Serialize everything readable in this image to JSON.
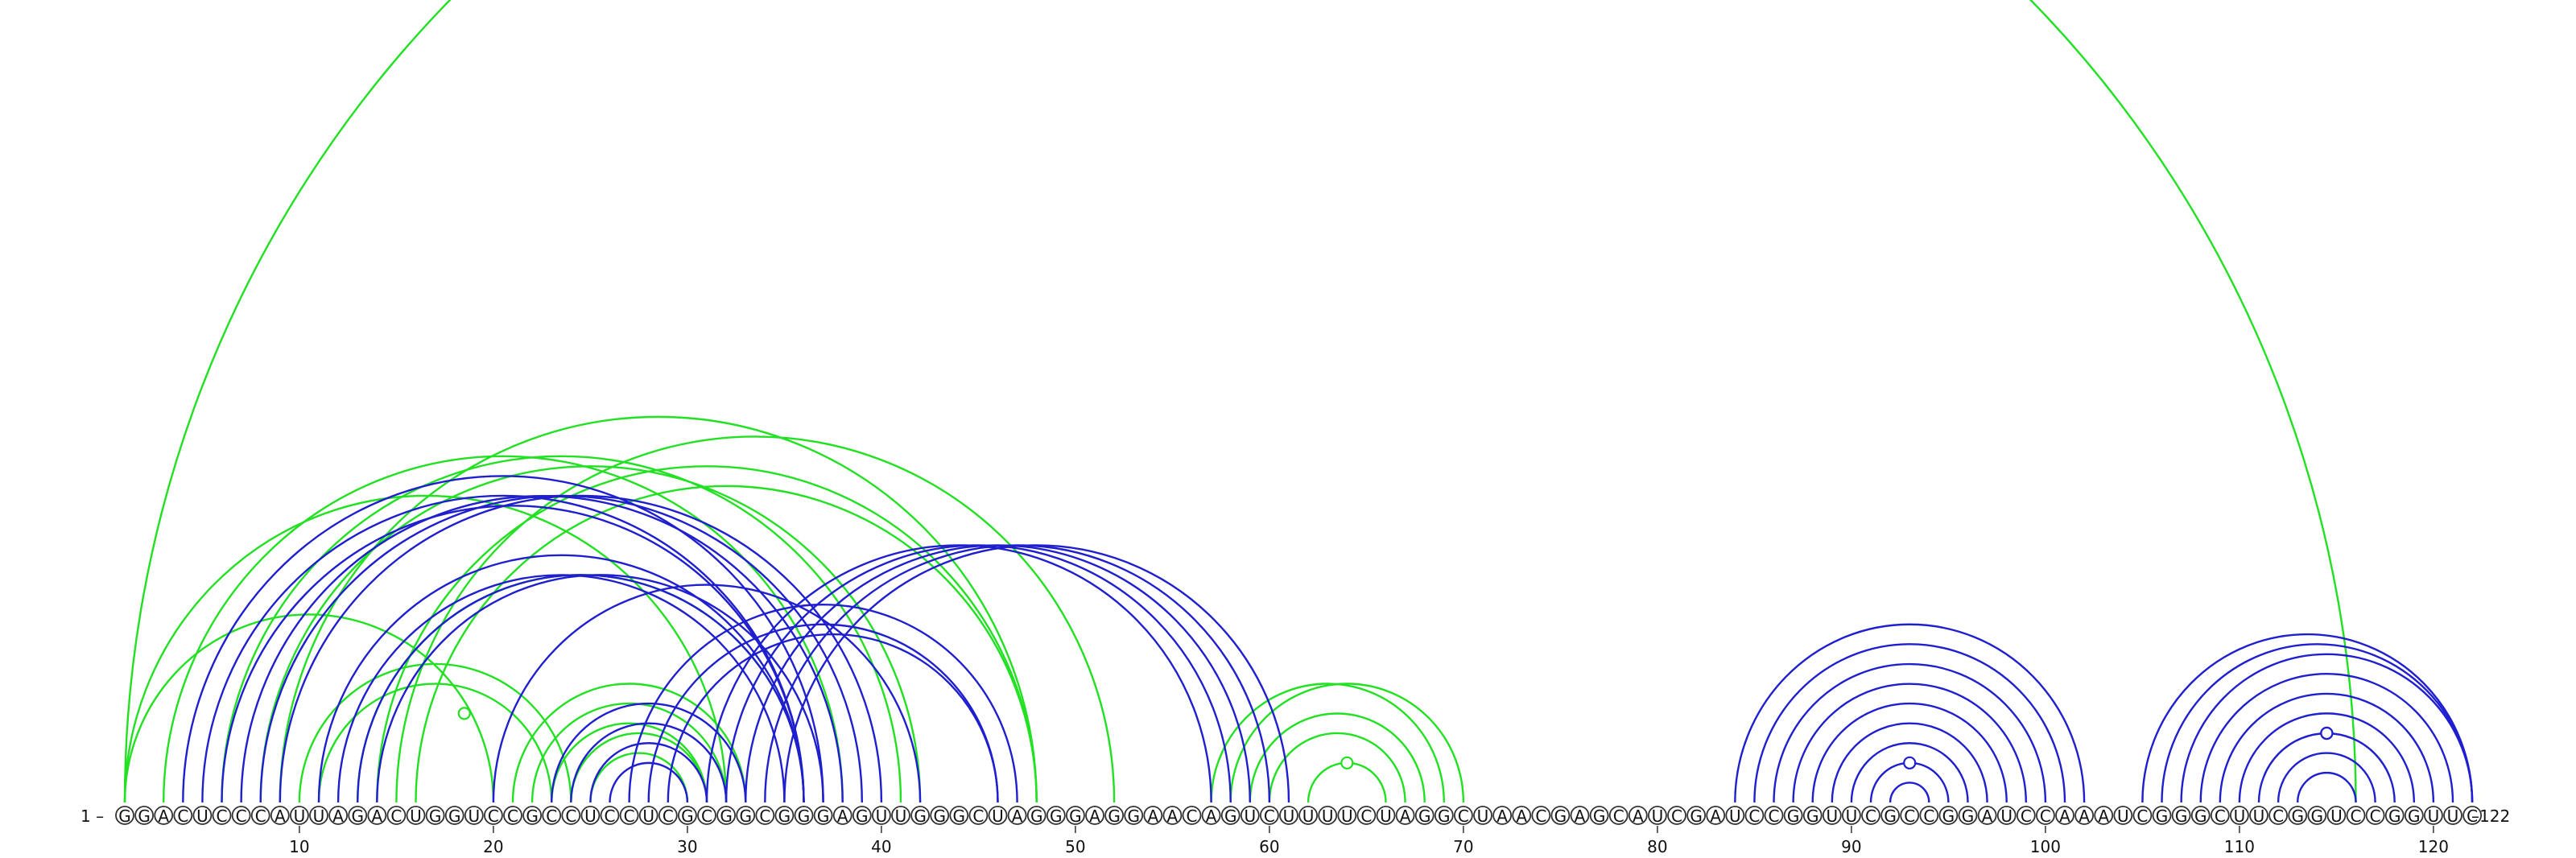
{
  "sequence": "GGACUCCCAUUAGACUGGUCCGCCUCCUCGCGGCGGGAGUUGGGCUAGGGAGGAACAGUCUUUUCUAGGCUAACGAGCAUCGAUCCGGUUCGCCGGAUCCAAAUCGGGCUUCGGUCCGGUUC",
  "start_label": "1 –",
  "end_label": "–122",
  "ticks": [
    10,
    20,
    30,
    40,
    50,
    60,
    70,
    80,
    90,
    100,
    110,
    120
  ],
  "colors": {
    "blue_arc": "#1f1fcf",
    "green_arc": "#22e022",
    "nucleotide_stroke": "#333333"
  },
  "arcs": {
    "blue": [
      [
        4,
        37
      ],
      [
        5,
        36
      ],
      [
        6,
        36
      ],
      [
        7,
        38
      ],
      [
        8,
        39
      ],
      [
        9,
        40
      ],
      [
        11,
        36
      ],
      [
        12,
        35
      ],
      [
        13,
        36
      ],
      [
        14,
        37
      ],
      [
        20,
        42
      ],
      [
        23,
        33
      ],
      [
        24,
        32
      ],
      [
        25,
        31
      ],
      [
        26,
        30
      ],
      [
        27,
        47
      ],
      [
        28,
        46
      ],
      [
        29,
        46
      ],
      [
        31,
        57
      ],
      [
        32,
        58
      ],
      [
        33,
        59
      ],
      [
        34,
        60
      ],
      [
        35,
        61
      ],
      [
        84,
        102
      ],
      [
        85,
        101
      ],
      [
        86,
        100
      ],
      [
        87,
        99
      ],
      [
        88,
        98
      ],
      [
        89,
        97
      ],
      [
        90,
        96
      ],
      [
        91,
        95
      ],
      [
        92,
        94
      ],
      [
        105,
        124
      ],
      [
        106,
        123
      ],
      [
        107,
        122
      ],
      [
        108,
        121
      ],
      [
        109,
        120
      ],
      [
        110,
        119
      ],
      [
        111,
        118
      ],
      [
        112,
        117
      ],
      [
        113,
        116
      ]
    ],
    "green": [
      [
        1,
        116
      ],
      [
        1,
        20
      ],
      [
        1,
        32
      ],
      [
        3,
        38
      ],
      [
        6,
        41
      ],
      [
        8,
        42
      ],
      [
        9,
        48
      ],
      [
        10,
        24
      ],
      [
        11,
        23
      ],
      [
        13,
        36
      ],
      [
        14,
        48
      ],
      [
        15,
        52
      ],
      [
        16,
        48
      ],
      [
        21,
        33
      ],
      [
        22,
        32
      ],
      [
        23,
        31
      ],
      [
        24,
        31
      ],
      [
        25,
        30
      ],
      [
        57,
        69
      ],
      [
        58,
        70
      ],
      [
        59,
        68
      ],
      [
        60,
        67
      ],
      [
        62,
        66
      ]
    ]
  },
  "markers": {
    "blue": [
      [
        91,
        95,
        1
      ],
      [
        111,
        118,
        1
      ],
      [
        111,
        118,
        3
      ],
      [
        111,
        118,
        5
      ]
    ],
    "green": [
      [
        14,
        23,
        1
      ],
      [
        62,
        66,
        1
      ]
    ]
  }
}
